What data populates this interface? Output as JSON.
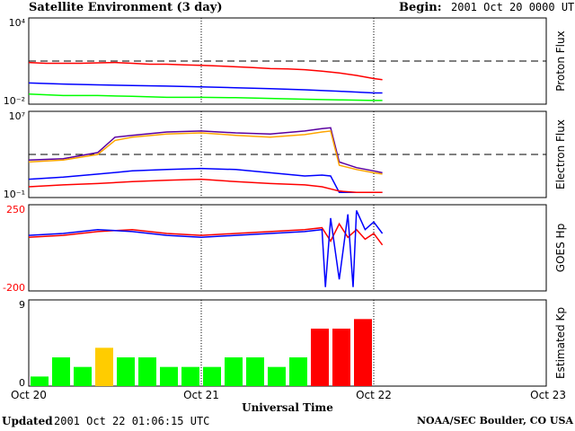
{
  "header": {
    "title": "Satellite Environment (3 day)",
    "begin_label": "Begin:",
    "begin_value": "2001 Oct 20 0000 UTC"
  },
  "footer": {
    "updated_label": "Updated",
    "updated_value": "2001 Oct 22 01:06:15 UTC",
    "credit": "NOAA/SEC Boulder, CO USA"
  },
  "colors": {
    "red": "#ff0000",
    "blue": "#0000ff",
    "green": "#00ff00",
    "orange": "#ffa500",
    "purple": "#5a00a0",
    "yellow": "#ffcc00",
    "grid": "#000000"
  },
  "chart_data": [
    {
      "type": "line",
      "panel": "proton",
      "ylabel": "Proton Flux",
      "yscale": "log",
      "ylim": [
        0.01,
        10000
      ],
      "tick_labels": [
        "10⁴",
        "10⁻²"
      ],
      "threshold": 10,
      "series": [
        {
          "color": "red",
          "x": [
            0,
            0.1,
            0.2,
            0.3,
            0.4,
            0.5,
            0.6,
            0.7,
            0.8,
            0.9,
            1.0,
            1.1,
            1.2,
            1.3,
            1.4,
            1.5,
            1.6,
            1.7,
            1.8,
            1.9,
            2.0,
            2.05
          ],
          "y": [
            8,
            7,
            7,
            7,
            7.5,
            8,
            7,
            6,
            6,
            5.5,
            5,
            4.5,
            4,
            3.5,
            3,
            2.8,
            2.5,
            2,
            1.5,
            1,
            0.6,
            0.5
          ]
        },
        {
          "color": "blue",
          "x": [
            0,
            0.2,
            0.4,
            0.6,
            0.8,
            1.0,
            1.2,
            1.4,
            1.6,
            1.8,
            2.0,
            2.05
          ],
          "y": [
            0.3,
            0.25,
            0.22,
            0.2,
            0.18,
            0.16,
            0.14,
            0.12,
            0.1,
            0.08,
            0.06,
            0.06
          ]
        },
        {
          "color": "green",
          "x": [
            0,
            0.2,
            0.4,
            0.6,
            0.8,
            1.0,
            1.2,
            1.4,
            1.6,
            1.8,
            2.0,
            2.05
          ],
          "y": [
            0.05,
            0.04,
            0.04,
            0.035,
            0.03,
            0.03,
            0.028,
            0.025,
            0.022,
            0.02,
            0.018,
            0.018
          ]
        }
      ]
    },
    {
      "type": "line",
      "panel": "electron",
      "ylabel": "Electron Flux",
      "yscale": "log",
      "ylim": [
        0.1,
        10000000
      ],
      "tick_labels": [
        "10⁷",
        "10⁻¹"
      ],
      "threshold": 1000,
      "series": [
        {
          "color": "purple",
          "x": [
            0,
            0.2,
            0.4,
            0.5,
            0.6,
            0.8,
            1.0,
            1.2,
            1.4,
            1.6,
            1.7,
            1.75,
            1.8,
            1.9,
            2.0,
            2.05
          ],
          "y": [
            300,
            400,
            1500,
            40000,
            60000,
            120000,
            150000,
            100000,
            80000,
            150000,
            250000,
            300000,
            200,
            60,
            30,
            20
          ]
        },
        {
          "color": "orange",
          "x": [
            0,
            0.2,
            0.4,
            0.5,
            0.6,
            0.8,
            1.0,
            1.2,
            1.4,
            1.6,
            1.7,
            1.75,
            1.8,
            1.9,
            2.0,
            2.05
          ],
          "y": [
            200,
            300,
            1000,
            20000,
            40000,
            80000,
            100000,
            60000,
            40000,
            70000,
            120000,
            150000,
            100,
            40,
            20,
            15
          ]
        },
        {
          "color": "blue",
          "x": [
            0,
            0.2,
            0.4,
            0.6,
            0.8,
            1.0,
            1.2,
            1.4,
            1.6,
            1.7,
            1.75,
            1.8,
            1.9,
            2.0,
            2.05
          ],
          "y": [
            5,
            8,
            15,
            30,
            40,
            50,
            40,
            20,
            10,
            12,
            10,
            0.3,
            0.3,
            0.3,
            0.3
          ]
        },
        {
          "color": "red",
          "x": [
            0,
            0.2,
            0.4,
            0.6,
            0.8,
            1.0,
            1.2,
            1.4,
            1.6,
            1.7,
            1.8,
            1.9,
            2.0,
            2.05
          ],
          "y": [
            1,
            1.5,
            2,
            3,
            4,
            5,
            3,
            2,
            1.5,
            1,
            0.4,
            0.3,
            0.3,
            0.3
          ]
        }
      ]
    },
    {
      "type": "line",
      "panel": "goes_hp",
      "ylabel": "GOES Hp",
      "ylim": [
        -200,
        250
      ],
      "tick_labels": [
        "250",
        "-200"
      ],
      "series": [
        {
          "color": "red",
          "x": [
            0,
            0.2,
            0.4,
            0.6,
            0.8,
            1.0,
            1.2,
            1.4,
            1.6,
            1.7,
            1.75,
            1.8,
            1.85,
            1.9,
            1.95,
            2.0,
            2.05
          ],
          "y": [
            80,
            90,
            110,
            120,
            100,
            90,
            100,
            110,
            120,
            130,
            60,
            150,
            80,
            120,
            70,
            100,
            40
          ]
        },
        {
          "color": "blue",
          "x": [
            0,
            0.2,
            0.4,
            0.6,
            0.8,
            1.0,
            1.2,
            1.4,
            1.6,
            1.7,
            1.72,
            1.75,
            1.8,
            1.85,
            1.88,
            1.9,
            1.95,
            2.0,
            2.05
          ],
          "y": [
            90,
            100,
            120,
            110,
            90,
            80,
            90,
            100,
            110,
            120,
            -180,
            180,
            -140,
            200,
            -180,
            220,
            120,
            160,
            100
          ]
        }
      ]
    },
    {
      "type": "bar",
      "panel": "kp",
      "ylabel": "Estimated Kp",
      "ylim": [
        0,
        9
      ],
      "tick_labels": [
        "9",
        "0"
      ],
      "bar_hours": 3,
      "values": [
        1,
        3,
        2,
        4,
        3,
        3,
        2,
        2,
        2,
        3,
        3,
        2,
        3,
        6,
        6,
        7
      ],
      "colors": [
        "green",
        "green",
        "green",
        "yellow",
        "green",
        "green",
        "green",
        "green",
        "green",
        "green",
        "green",
        "green",
        "green",
        "red",
        "red",
        "red"
      ]
    }
  ],
  "xaxis": {
    "title": "Universal Time",
    "ticks": [
      "Oct 20",
      "Oct 21",
      "Oct 22",
      "Oct 23"
    ]
  }
}
